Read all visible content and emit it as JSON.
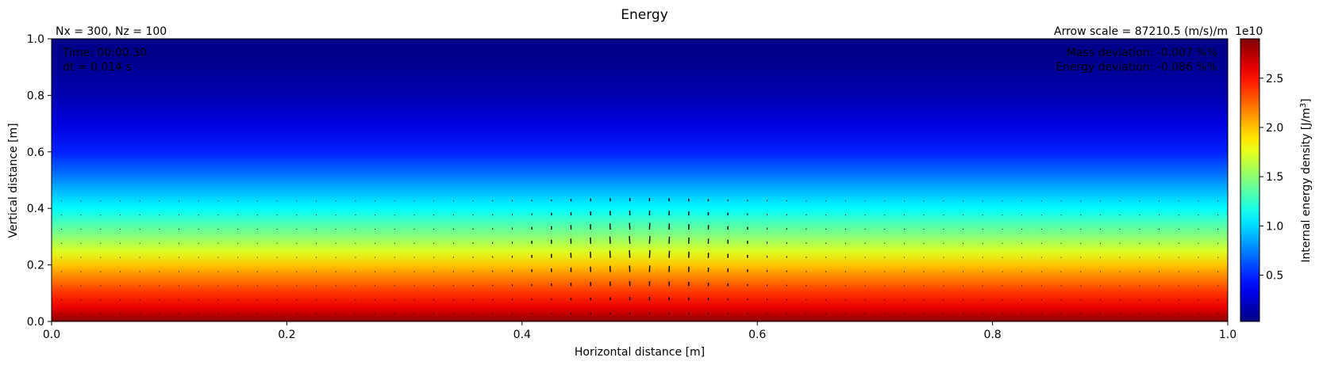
{
  "chart_data": {
    "type": "heatmap",
    "title": "Energy",
    "top_left_label": "Nx = 300, Nz = 100",
    "top_right_label": "Arrow scale = 87210.5 (m/s)/m",
    "inset_left": [
      "Time: 00:00.30",
      "dt = 0.014 s"
    ],
    "inset_right": [
      "Mass deviation: -0.007 %%",
      "Energy deviation: -0.086 %%"
    ],
    "xlabel": "Horizontal distance [m]",
    "ylabel": "Vertical distance [m]",
    "xlim": [
      0.0,
      1.0
    ],
    "ylim": [
      0.0,
      1.0
    ],
    "x_ticks": [
      "0.0",
      "0.2",
      "0.4",
      "0.6",
      "0.8",
      "1.0"
    ],
    "y_ticks": [
      "0.0",
      "0.2",
      "0.4",
      "0.6",
      "0.8",
      "1.0"
    ],
    "x_tick_values": [
      0.0,
      0.2,
      0.4,
      0.6,
      0.8,
      1.0
    ],
    "y_tick_values": [
      0.0,
      0.2,
      0.4,
      0.6,
      0.8,
      1.0
    ],
    "colormap": "jet",
    "colorbar": {
      "label": "Internal energy density [J/m",
      "label_sup": "3",
      "label_end": "]",
      "multiplier": "1e10",
      "range": [
        0.03,
        2.9
      ],
      "ticks": [
        "0.5",
        "1.0",
        "1.5",
        "2.0",
        "2.5"
      ],
      "tick_values": [
        0.5,
        1.0,
        1.5,
        2.0,
        2.5
      ]
    },
    "energy_profile_vs_height": {
      "z": [
        0.0,
        0.02,
        0.05,
        0.1,
        0.15,
        0.2,
        0.25,
        0.3,
        0.35,
        0.4,
        0.45,
        0.5,
        0.55,
        0.6,
        0.7,
        0.8,
        0.9,
        1.0
      ],
      "value_1e10": [
        2.9,
        2.75,
        2.6,
        2.4,
        2.2,
        1.98,
        1.72,
        1.5,
        1.3,
        1.1,
        0.95,
        0.78,
        0.62,
        0.48,
        0.3,
        0.17,
        0.09,
        0.05
      ]
    },
    "velocity_arrows": {
      "description_x_range": [
        0.42,
        0.58
      ],
      "description_z_range": [
        0.1,
        0.4
      ]
    }
  }
}
